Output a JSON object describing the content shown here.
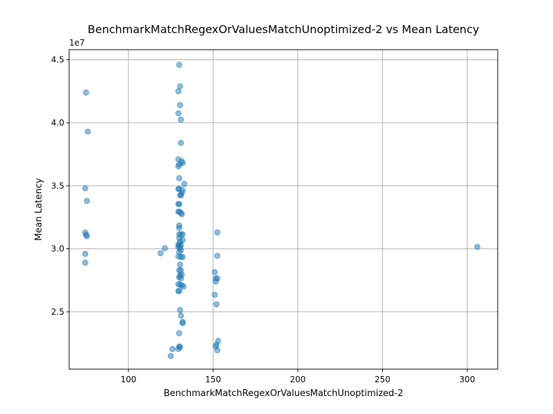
{
  "chart_data": {
    "type": "scatter",
    "title": "BenchmarkMatchRegexOrValuesMatchUnoptimized-2 vs Mean Latency",
    "xlabel": "BenchmarkMatchRegexOrValuesMatchUnoptimized-2",
    "ylabel": "Mean Latency",
    "y_offset_label": "1e7",
    "xlim": [
      65,
      318
    ],
    "ylim": [
      20450000,
      45800000
    ],
    "xticks": [
      100,
      150,
      200,
      250,
      300
    ],
    "xtick_labels": [
      "100",
      "150",
      "200",
      "250",
      "300"
    ],
    "yticks": [
      25000000,
      30000000,
      35000000,
      40000000,
      45000000
    ],
    "ytick_labels": [
      "2.5",
      "3.0",
      "3.5",
      "4.0",
      "4.5"
    ],
    "grid": true,
    "color": "#1f77b4",
    "points": [
      [
        75.0,
        42400000
      ],
      [
        76.0,
        39300000
      ],
      [
        74.5,
        34800000
      ],
      [
        75.5,
        33800000
      ],
      [
        74.5,
        31300000
      ],
      [
        75.0,
        31100000
      ],
      [
        75.5,
        31000000
      ],
      [
        74.5,
        29600000
      ],
      [
        74.5,
        28900000
      ],
      [
        119.0,
        29650000
      ],
      [
        121.5,
        30050000
      ],
      [
        125.0,
        21500000
      ],
      [
        126.0,
        22050000
      ],
      [
        130.0,
        44600000
      ],
      [
        130.5,
        42900000
      ],
      [
        129.5,
        42500000
      ],
      [
        130.5,
        41400000
      ],
      [
        129.5,
        40750000
      ],
      [
        131.0,
        40250000
      ],
      [
        131.0,
        38400000
      ],
      [
        129.5,
        37100000
      ],
      [
        131.5,
        36950000
      ],
      [
        132.0,
        36800000
      ],
      [
        130.0,
        36700000
      ],
      [
        129.5,
        36550000
      ],
      [
        130.0,
        35600000
      ],
      [
        133.0,
        35150000
      ],
      [
        129.5,
        34750000
      ],
      [
        130.0,
        34750000
      ],
      [
        132.0,
        34650000
      ],
      [
        131.5,
        34450000
      ],
      [
        130.5,
        34250000
      ],
      [
        131.0,
        34250000
      ],
      [
        129.5,
        33550000
      ],
      [
        130.0,
        33550000
      ],
      [
        129.5,
        32950000
      ],
      [
        130.0,
        32950000
      ],
      [
        131.5,
        32750000
      ],
      [
        131.0,
        32850000
      ],
      [
        130.0,
        31850000
      ],
      [
        130.0,
        31650000
      ],
      [
        130.0,
        31150000
      ],
      [
        131.0,
        31150000
      ],
      [
        132.0,
        31150000
      ],
      [
        130.0,
        30850000
      ],
      [
        132.0,
        30700000
      ],
      [
        130.5,
        30550000
      ],
      [
        129.5,
        30350000
      ],
      [
        130.0,
        30250000
      ],
      [
        131.0,
        30300000
      ],
      [
        129.5,
        30150000
      ],
      [
        130.5,
        30100000
      ],
      [
        131.0,
        29900000
      ],
      [
        130.0,
        29750000
      ],
      [
        129.5,
        29400000
      ],
      [
        131.0,
        29350000
      ],
      [
        132.0,
        29350000
      ],
      [
        130.5,
        28750000
      ],
      [
        130.0,
        28300000
      ],
      [
        131.0,
        28300000
      ],
      [
        130.5,
        27900000
      ],
      [
        131.5,
        27950000
      ],
      [
        130.0,
        27750000
      ],
      [
        131.0,
        27650000
      ],
      [
        129.5,
        27200000
      ],
      [
        130.5,
        27150000
      ],
      [
        132.5,
        27000000
      ],
      [
        131.5,
        27100000
      ],
      [
        129.5,
        26650000
      ],
      [
        130.0,
        26650000
      ],
      [
        130.5,
        25150000
      ],
      [
        131.0,
        24700000
      ],
      [
        132.0,
        24200000
      ],
      [
        132.0,
        24100000
      ],
      [
        130.0,
        23300000
      ],
      [
        130.0,
        22250000
      ],
      [
        130.5,
        22200000
      ],
      [
        129.5,
        22050000
      ],
      [
        152.5,
        31300000
      ],
      [
        152.5,
        29450000
      ],
      [
        151.0,
        28150000
      ],
      [
        151.5,
        27650000
      ],
      [
        152.5,
        27650000
      ],
      [
        151.5,
        27400000
      ],
      [
        151.0,
        26350000
      ],
      [
        152.0,
        25600000
      ],
      [
        153.0,
        22700000
      ],
      [
        152.0,
        22400000
      ],
      [
        151.5,
        22250000
      ],
      [
        152.5,
        21950000
      ],
      [
        306.0,
        30150000
      ]
    ]
  }
}
